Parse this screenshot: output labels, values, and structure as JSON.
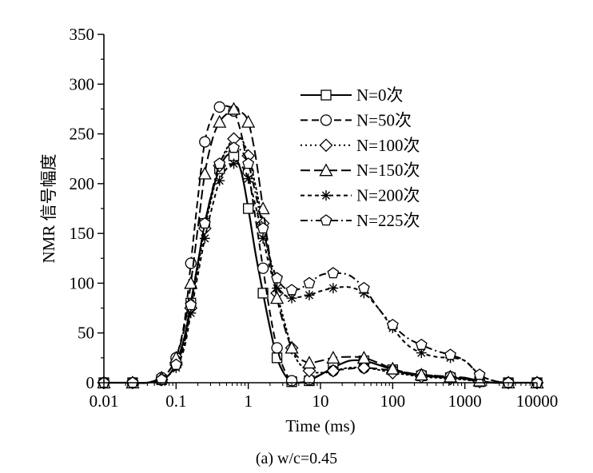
{
  "chart_data": {
    "type": "line",
    "title": "",
    "caption": "(a) w/c=0.45",
    "xlabel": "Time (ms)",
    "ylabel": "NMR 信号幅度",
    "xscale": "log",
    "xlim": [
      0.01,
      10000
    ],
    "ylim": [
      0,
      350
    ],
    "xticks": [
      0.01,
      0.1,
      1,
      10,
      100,
      1000,
      10000
    ],
    "xtick_labels": [
      "0.01",
      "0.1",
      "1",
      "10",
      "100",
      "1000",
      "10000"
    ],
    "yticks": [
      0,
      50,
      100,
      150,
      200,
      250,
      300,
      350
    ],
    "ytick_labels": [
      "0",
      "50",
      "100",
      "150",
      "200",
      "250",
      "300",
      "350"
    ],
    "grid": false,
    "legend_position": "upper-right",
    "series": [
      {
        "name": "N=0次",
        "marker": "square",
        "dash": "solid",
        "x": [
          0.01,
          0.016,
          0.025,
          0.04,
          0.063,
          0.08,
          0.1,
          0.13,
          0.16,
          0.2,
          0.25,
          0.32,
          0.4,
          0.5,
          0.63,
          0.8,
          1.0,
          1.26,
          1.6,
          2.0,
          2.5,
          3.2,
          4.0,
          5.0,
          7.0,
          10,
          15,
          25,
          40,
          63,
          100,
          160,
          250,
          400,
          630,
          1000,
          1600,
          2500,
          4000,
          6300,
          10000
        ],
        "y": [
          0,
          0,
          0,
          0,
          3,
          8,
          20,
          45,
          80,
          120,
          160,
          193,
          215,
          228,
          228,
          212,
          175,
          130,
          90,
          55,
          25,
          8,
          1,
          0,
          2,
          8,
          15,
          22,
          22,
          18,
          13,
          9,
          7,
          6,
          5,
          4,
          1,
          0,
          0,
          0,
          0
        ]
      },
      {
        "name": "N=50次",
        "marker": "circle",
        "dash": "dash",
        "x": [
          0.01,
          0.016,
          0.025,
          0.04,
          0.063,
          0.08,
          0.1,
          0.13,
          0.16,
          0.2,
          0.25,
          0.32,
          0.4,
          0.5,
          0.63,
          0.8,
          1.0,
          1.26,
          1.6,
          2.0,
          2.5,
          3.2,
          4.0,
          5.0,
          7.0,
          10,
          15,
          25,
          40,
          63,
          100,
          160,
          250,
          400,
          630,
          1000,
          1600,
          2500,
          4000,
          6300,
          10000
        ],
        "y": [
          0,
          0,
          0,
          0,
          5,
          12,
          25,
          60,
          120,
          185,
          242,
          268,
          277,
          278,
          273,
          250,
          212,
          165,
          115,
          70,
          35,
          12,
          2,
          0,
          3,
          8,
          12,
          14,
          15,
          14,
          12,
          10,
          8,
          7,
          6,
          5,
          2,
          0,
          0,
          0,
          0
        ]
      },
      {
        "name": "N=100次",
        "marker": "diamond",
        "dash": "dot",
        "x": [
          0.01,
          0.016,
          0.025,
          0.04,
          0.063,
          0.08,
          0.1,
          0.13,
          0.16,
          0.2,
          0.25,
          0.32,
          0.4,
          0.5,
          0.63,
          0.8,
          1.0,
          1.26,
          1.6,
          2.0,
          2.5,
          3.2,
          4.0,
          5.0,
          7.0,
          10,
          15,
          25,
          40,
          63,
          100,
          160,
          250,
          400,
          630,
          1000,
          1600,
          2500,
          4000,
          6300,
          10000
        ],
        "y": [
          0,
          0,
          0,
          0,
          3,
          8,
          18,
          40,
          75,
          115,
          155,
          190,
          218,
          235,
          245,
          245,
          228,
          198,
          160,
          122,
          90,
          60,
          35,
          20,
          12,
          10,
          12,
          15,
          15,
          13,
          10,
          8,
          6,
          5,
          4,
          3,
          1,
          0,
          0,
          0,
          0
        ]
      },
      {
        "name": "N=150次",
        "marker": "triangle",
        "dash": "longdash",
        "x": [
          0.01,
          0.016,
          0.025,
          0.04,
          0.063,
          0.08,
          0.1,
          0.13,
          0.16,
          0.2,
          0.25,
          0.32,
          0.4,
          0.5,
          0.63,
          0.8,
          1.0,
          1.26,
          1.6,
          2.0,
          2.5,
          3.2,
          4.0,
          5.0,
          7.0,
          10,
          15,
          25,
          40,
          63,
          100,
          160,
          250,
          400,
          630,
          1000,
          1600,
          2500,
          4000,
          6300,
          10000
        ],
        "y": [
          0,
          0,
          0,
          0,
          5,
          12,
          25,
          55,
          100,
          155,
          210,
          245,
          262,
          270,
          275,
          272,
          262,
          228,
          175,
          125,
          85,
          55,
          35,
          25,
          20,
          22,
          25,
          26,
          25,
          20,
          14,
          10,
          8,
          7,
          6,
          5,
          2,
          0,
          0,
          0,
          0
        ]
      },
      {
        "name": "N=200次",
        "marker": "asterisk",
        "dash": "shortdash",
        "x": [
          0.01,
          0.016,
          0.025,
          0.04,
          0.063,
          0.08,
          0.1,
          0.13,
          0.16,
          0.2,
          0.25,
          0.32,
          0.4,
          0.5,
          0.63,
          0.8,
          1.0,
          1.26,
          1.6,
          2.0,
          2.5,
          3.2,
          4.0,
          5.0,
          7.0,
          10,
          15,
          25,
          40,
          63,
          100,
          160,
          250,
          400,
          630,
          1000,
          1600,
          2500,
          4000,
          6300,
          10000
        ],
        "y": [
          0,
          0,
          0,
          0,
          3,
          8,
          15,
          35,
          70,
          108,
          145,
          178,
          203,
          215,
          220,
          218,
          205,
          178,
          145,
          115,
          95,
          88,
          85,
          86,
          88,
          92,
          95,
          96,
          90,
          75,
          55,
          38,
          30,
          26,
          25,
          22,
          8,
          2,
          0,
          0,
          0
        ]
      },
      {
        "name": "N=225次",
        "marker": "pentagon",
        "dash": "dashdot",
        "x": [
          0.01,
          0.016,
          0.025,
          0.04,
          0.063,
          0.08,
          0.1,
          0.13,
          0.16,
          0.2,
          0.25,
          0.32,
          0.4,
          0.5,
          0.63,
          0.8,
          1.0,
          1.26,
          1.6,
          2.0,
          2.5,
          3.2,
          4.0,
          5.0,
          7.0,
          10,
          15,
          25,
          40,
          63,
          100,
          160,
          250,
          400,
          630,
          1000,
          1600,
          2500,
          4000,
          6300,
          10000
        ],
        "y": [
          0,
          0,
          0,
          0,
          3,
          8,
          18,
          40,
          78,
          120,
          160,
          195,
          220,
          232,
          236,
          233,
          220,
          190,
          155,
          125,
          105,
          95,
          93,
          94,
          100,
          108,
          110,
          108,
          95,
          75,
          58,
          45,
          38,
          32,
          28,
          22,
          8,
          2,
          0,
          0,
          0
        ]
      }
    ]
  }
}
